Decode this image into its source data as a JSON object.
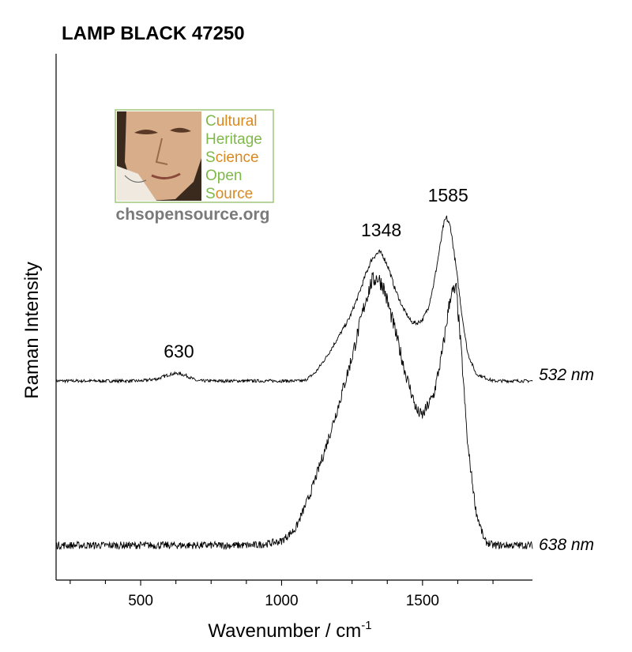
{
  "chart_data": {
    "type": "line",
    "title": "LAMP BLACK 47250",
    "xlabel": "Wavenumber / cm",
    "xlabel_sup": "-1",
    "ylabel": "Raman Intensity",
    "xlim": [
      200,
      1890
    ],
    "x_ticks": [
      500,
      1000,
      1500
    ],
    "x_tick_labels": [
      "500",
      "1000",
      "1500"
    ],
    "y_ticks_shown": false,
    "grid": false,
    "series": [
      {
        "name": "532 nm",
        "x": [
          200,
          300,
          400,
          500,
          560,
          600,
          630,
          660,
          700,
          750,
          800,
          900,
          1000,
          1080,
          1120,
          1160,
          1200,
          1240,
          1270,
          1300,
          1320,
          1335,
          1348,
          1360,
          1380,
          1400,
          1430,
          1460,
          1480,
          1500,
          1520,
          1540,
          1560,
          1575,
          1585,
          1600,
          1620,
          1640,
          1660,
          1690,
          1750,
          1800,
          1850,
          1890
        ],
        "values": [
          0,
          0,
          0,
          0,
          0.03,
          0.09,
          0.11,
          0.08,
          0,
          0,
          0,
          0,
          0,
          0,
          0.12,
          0.35,
          0.62,
          0.9,
          1.2,
          1.55,
          1.75,
          1.82,
          1.85,
          1.8,
          1.62,
          1.35,
          1.05,
          0.85,
          0.83,
          0.88,
          1.05,
          1.4,
          1.88,
          2.25,
          2.35,
          2.2,
          1.6,
          0.95,
          0.4,
          0.1,
          0,
          0,
          0,
          0
        ]
      },
      {
        "name": "638 nm",
        "x": [
          200,
          300,
          400,
          500,
          600,
          700,
          800,
          900,
          950,
          1000,
          1050,
          1100,
          1150,
          1200,
          1250,
          1300,
          1320,
          1340,
          1360,
          1400,
          1440,
          1480,
          1500,
          1540,
          1570,
          1600,
          1620,
          1640,
          1660,
          1690,
          1720,
          1750,
          1800,
          1850,
          1890
        ],
        "values": [
          0,
          0,
          0,
          0,
          0,
          0,
          0,
          0,
          0.02,
          0.05,
          0.2,
          0.6,
          1.1,
          1.65,
          2.25,
          2.95,
          3.15,
          3.2,
          3.1,
          2.6,
          2.05,
          1.6,
          1.55,
          1.8,
          2.3,
          3.0,
          3.05,
          2.2,
          1.2,
          0.4,
          0.05,
          0,
          0,
          0,
          0
        ]
      }
    ],
    "annotations": [
      {
        "text": "630",
        "x": 630
      },
      {
        "text": "1348",
        "x": 1348
      },
      {
        "text": "1585",
        "x": 1585
      }
    ]
  },
  "logo": {
    "words": [
      "Cultural",
      "Heritage",
      "Science",
      "Open",
      "Source"
    ],
    "url": "chsopensource.org",
    "colors": {
      "orange": "#d9891f",
      "green": "#7fb84a",
      "gray": "#7a7a7a",
      "border": "#9fc77a"
    }
  }
}
